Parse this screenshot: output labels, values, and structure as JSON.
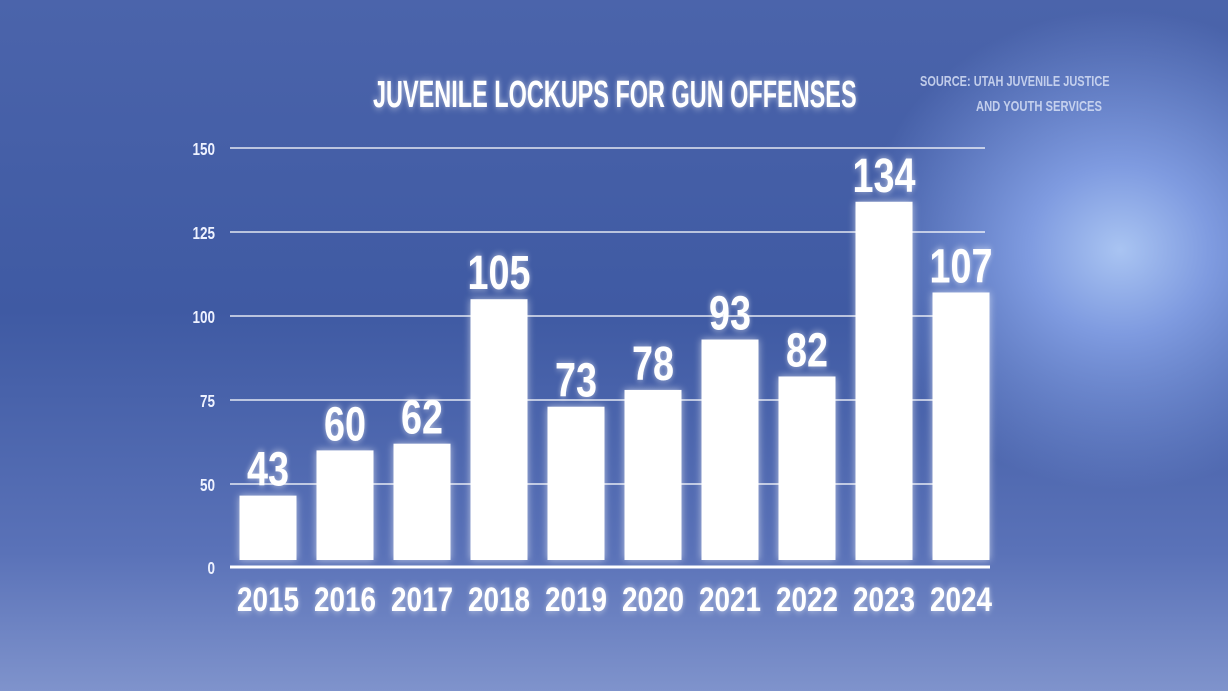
{
  "chart_data": {
    "type": "bar",
    "title": "JUVENILE LOCKUPS FOR GUN OFFENSES",
    "source": [
      "SOURCE:  UTAH JUVENILE JUSTICE",
      "AND YOUTH SERVICES"
    ],
    "categories": [
      "2015",
      "2016",
      "2017",
      "2018",
      "2019",
      "2020",
      "2021",
      "2022",
      "2023",
      "2024"
    ],
    "values": [
      43,
      60,
      62,
      105,
      73,
      78,
      93,
      82,
      134,
      107
    ],
    "yticks": [
      0,
      50,
      75,
      100,
      125,
      150
    ],
    "ylim": [
      0,
      150
    ],
    "axis_break": "0 to 50",
    "grid": true,
    "data_labels": true,
    "colors": {
      "bar": "#ffffff",
      "background": "#4259a3",
      "text": "#ffffff"
    }
  }
}
